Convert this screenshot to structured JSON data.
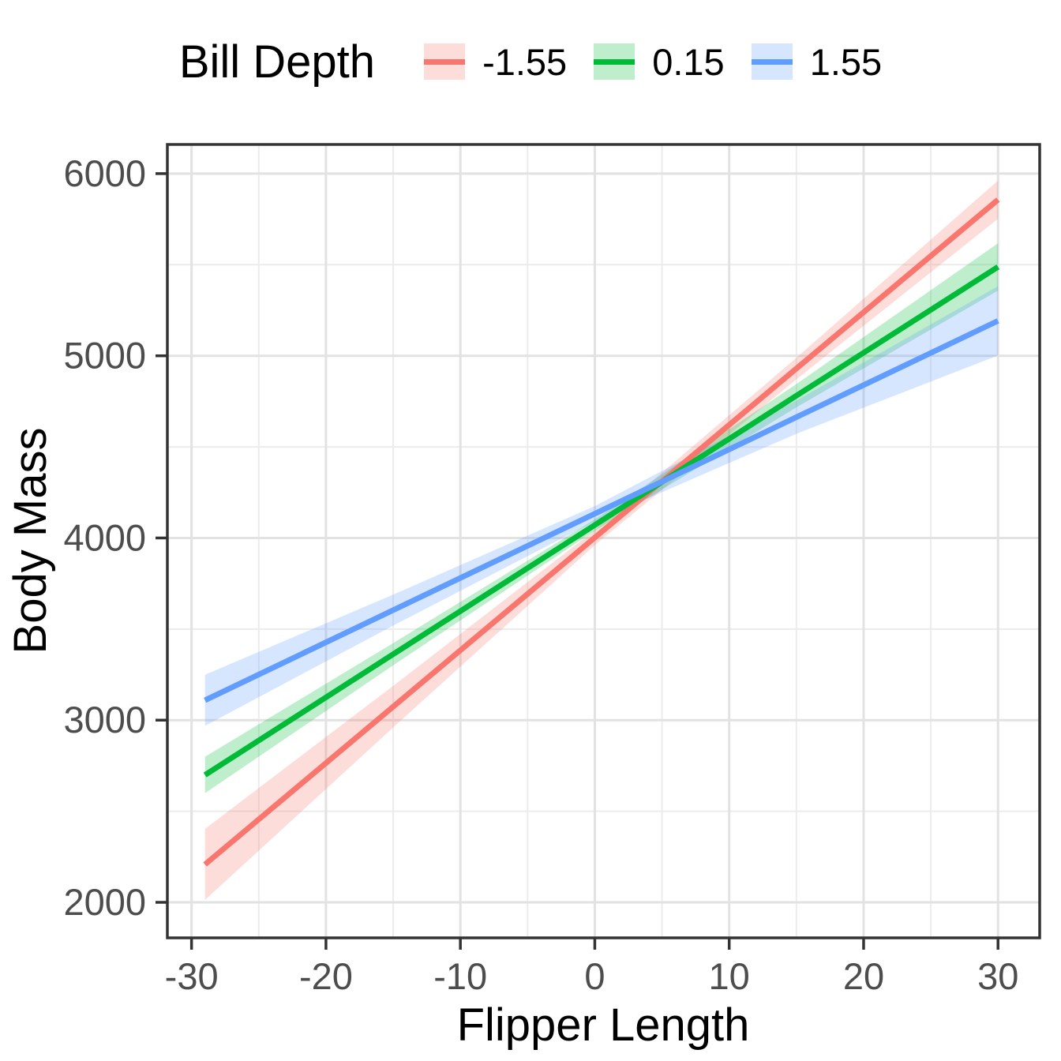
{
  "figure": {
    "background": "#ffffff",
    "panel_border_color": "#333333",
    "grid_major_color": "#e2e2e2",
    "grid_minor_color": "#ececec",
    "tick_color": "#333333",
    "tick_label_color": "#4d4d4d"
  },
  "chart_data": {
    "type": "line",
    "title": "",
    "xlabel": "Flipper Length",
    "ylabel": "Body Mass",
    "xlim": [
      -31.8,
      33.1
    ],
    "ylim": [
      1805,
      6160
    ],
    "x_ticks": [
      -30,
      -20,
      -10,
      0,
      10,
      20,
      30
    ],
    "x_minor_ticks": [
      -25,
      -15,
      -5,
      5,
      15,
      25
    ],
    "y_ticks": [
      2000,
      3000,
      4000,
      5000,
      6000
    ],
    "y_minor_ticks": [
      2500,
      3500,
      4500,
      5500
    ],
    "grid": "major and minor, light gray on white, full dark panel border",
    "legend": {
      "title": "Bill Depth",
      "position": "top",
      "entries": [
        "-1.55",
        "0.15",
        "1.55"
      ]
    },
    "ribbon_opacity": 0.25,
    "series": [
      {
        "name": "-1.55",
        "color": "#F8766D",
        "x": [
          -29,
          -15,
          0,
          15,
          30
        ],
        "y": [
          2208,
          3074,
          4002,
          4930,
          5857
        ],
        "ci_upper": [
          2403,
          3188,
          4043,
          4989,
          5962
        ],
        "ci_lower": [
          2013,
          2960,
          3961,
          4871,
          5752
        ]
      },
      {
        "name": "0.15",
        "color": "#00BA38",
        "x": [
          -29,
          -15,
          0,
          15,
          30
        ],
        "y": [
          2699,
          3362,
          4071,
          4781,
          5488
        ],
        "ci_upper": [
          2799,
          3423,
          4102,
          4845,
          5618
        ],
        "ci_lower": [
          2599,
          3301,
          4040,
          4717,
          5358
        ]
      },
      {
        "name": "1.55",
        "color": "#619CFF",
        "x": [
          -29,
          -15,
          0,
          15,
          30
        ],
        "y": [
          3109,
          3604,
          4133,
          4663,
          5192
        ],
        "ci_upper": [
          3249,
          3689,
          4175,
          4754,
          5382
        ],
        "ci_lower": [
          2969,
          3519,
          4091,
          4572,
          5002
        ]
      }
    ]
  }
}
